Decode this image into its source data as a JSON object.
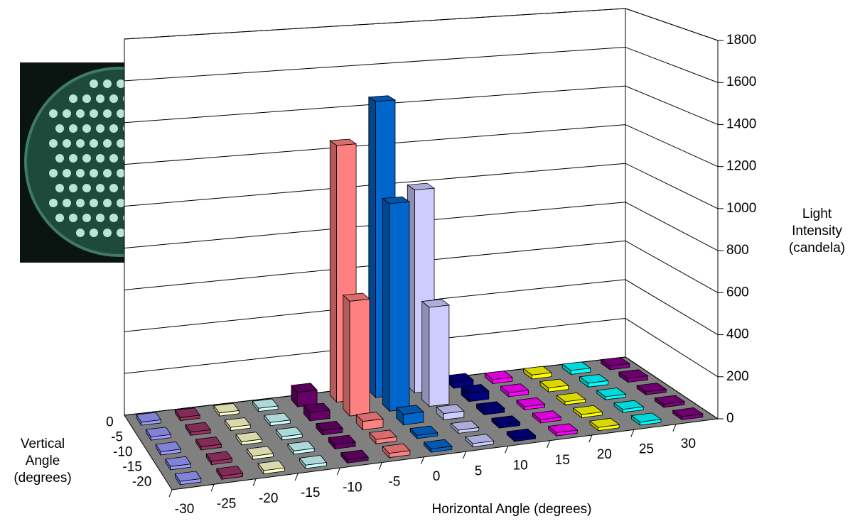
{
  "chart_data": {
    "type": "bar3d",
    "x_axis_label": "Horizontal Angle (degrees)",
    "depth_axis_label": "Vertical Angle (degrees)",
    "y_axis_label": "Light Intensity (candela)",
    "categories": [
      -30,
      -25,
      -20,
      -15,
      -10,
      -5,
      0,
      5,
      10,
      15,
      20,
      25,
      30
    ],
    "depth_categories": [
      0,
      -5,
      -10,
      -15,
      -20
    ],
    "colors": [
      "#9999ff",
      "#993366",
      "#ffffcc",
      "#ccffff",
      "#660066",
      "#ff8080",
      "#0066cc",
      "#ccccff",
      "#000080",
      "#ff00ff",
      "#ffff00",
      "#00ffff",
      "#800080"
    ],
    "values": [
      [
        15,
        15,
        15,
        15,
        70,
        1250,
        1450,
        1000,
        30,
        20,
        20,
        20,
        20
      ],
      [
        15,
        15,
        15,
        15,
        40,
        550,
        1000,
        480,
        40,
        20,
        20,
        20,
        20
      ],
      [
        15,
        15,
        15,
        15,
        20,
        40,
        50,
        30,
        20,
        15,
        15,
        15,
        15
      ],
      [
        15,
        15,
        15,
        15,
        20,
        20,
        15,
        15,
        15,
        15,
        15,
        15,
        15
      ],
      [
        15,
        15,
        15,
        15,
        15,
        20,
        15,
        15,
        15,
        15,
        15,
        15,
        15
      ]
    ],
    "ylim": [
      0,
      1800
    ],
    "yticks": [
      0,
      200,
      400,
      600,
      800,
      1000,
      1200,
      1400,
      1600,
      1800
    ],
    "grid": true
  }
}
